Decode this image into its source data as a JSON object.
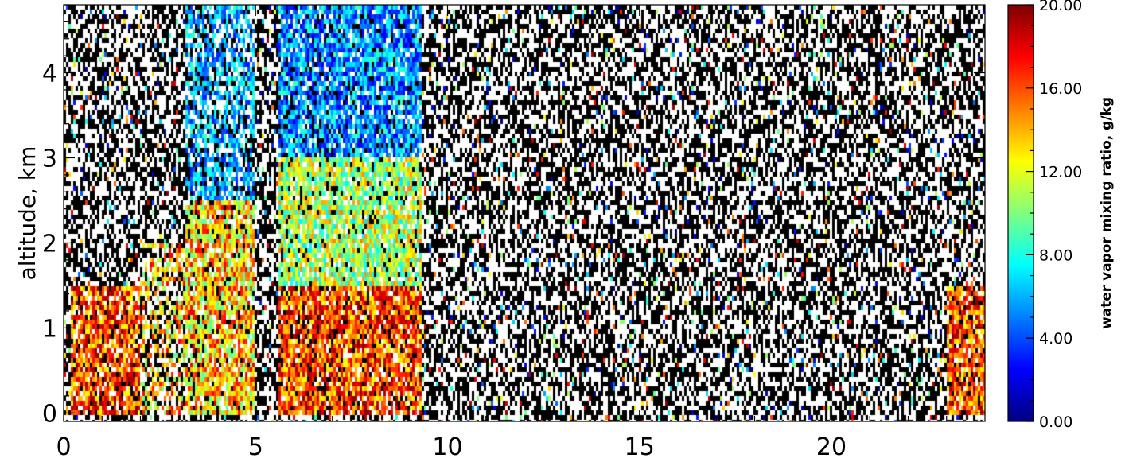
{
  "chart_data": {
    "type": "heatmap",
    "xlabel": "",
    "ylabel": "altitude, km",
    "xlim": [
      0,
      24
    ],
    "ylim": [
      -0.1,
      4.8
    ],
    "x_ticks": [
      {
        "value": 0,
        "label": "0"
      },
      {
        "value": 5,
        "label": "5"
      },
      {
        "value": 10,
        "label": "10"
      },
      {
        "value": 15,
        "label": "15"
      },
      {
        "value": 20,
        "label": "20"
      }
    ],
    "y_ticks": [
      {
        "value": 0,
        "label": "0"
      },
      {
        "value": 1,
        "label": "1"
      },
      {
        "value": 2,
        "label": "2"
      },
      {
        "value": 3,
        "label": "3"
      },
      {
        "value": 4,
        "label": "4"
      }
    ],
    "colorbar": {
      "label": "water vapor mixing ratio, g/kg",
      "range": [
        0,
        20
      ],
      "colormap": "jet",
      "ticks": [
        {
          "value": 0,
          "label": "0.00"
        },
        {
          "value": 4,
          "label": "4.00"
        },
        {
          "value": 8,
          "label": "8.00"
        },
        {
          "value": 12,
          "label": "12.00"
        },
        {
          "value": 16,
          "label": "16.00"
        },
        {
          "value": 20,
          "label": "20.00"
        }
      ]
    },
    "regions": [
      {
        "x_range": [
          0.2,
          2.0
        ],
        "alt_range": [
          0,
          1.5
        ],
        "values_gkg": [
          12,
          20
        ],
        "coverage": "dense"
      },
      {
        "x_range": [
          2.0,
          3.2
        ],
        "alt_range": [
          0,
          2.0
        ],
        "values_gkg": [
          9,
          18
        ],
        "coverage": "sparse"
      },
      {
        "x_range": [
          3.2,
          5.0
        ],
        "alt_range": [
          0,
          2.5
        ],
        "values_gkg": [
          9,
          18
        ],
        "coverage": "dense"
      },
      {
        "x_range": [
          3.2,
          5.0
        ],
        "alt_range": [
          2.5,
          4.8
        ],
        "values_gkg": [
          3,
          9
        ],
        "coverage": "medium"
      },
      {
        "x_range": [
          5.6,
          9.3
        ],
        "alt_range": [
          0,
          1.5
        ],
        "values_gkg": [
          12,
          20
        ],
        "coverage": "dense"
      },
      {
        "x_range": [
          5.6,
          9.3
        ],
        "alt_range": [
          1.5,
          3.0
        ],
        "values_gkg": [
          7,
          15
        ],
        "coverage": "dense"
      },
      {
        "x_range": [
          5.6,
          9.3
        ],
        "alt_range": [
          3.0,
          4.8
        ],
        "values_gkg": [
          2,
          9
        ],
        "coverage": "dense"
      },
      {
        "x_range": [
          9.4,
          23.0
        ],
        "alt_range": [
          0,
          4.8
        ],
        "values_gkg": [
          0,
          20
        ],
        "coverage": "noise"
      },
      {
        "x_range": [
          23.0,
          24.0
        ],
        "alt_range": [
          0,
          1.5
        ],
        "values_gkg": [
          12,
          20
        ],
        "coverage": "dense"
      }
    ]
  },
  "colors": {
    "noise": "#000000",
    "background": "#ffffff"
  }
}
